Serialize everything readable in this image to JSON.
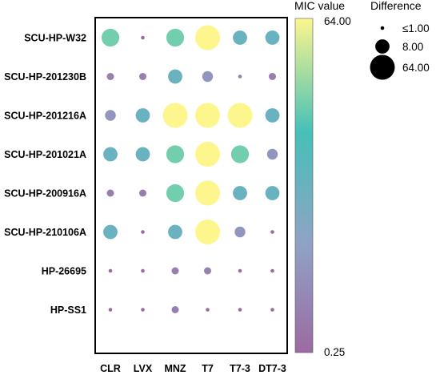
{
  "chart_data": {
    "type": "scatter",
    "subtype": "bubble-matrix",
    "columns": [
      "CLR",
      "LVX",
      "MNZ",
      "T7",
      "T7-3",
      "DT7-3"
    ],
    "rows": [
      "SCU-HP-W32",
      "SCU-HP-201230B",
      "SCU-HP-201216A",
      "SCU-HP-201021A",
      "SCU-HP-200916A",
      "SCU-HP-210106A",
      "HP-26695",
      "HP-SS1"
    ],
    "colorbar": {
      "title": "MIC value",
      "min_label": "0.25",
      "max_label": "64.00",
      "min": 0.25,
      "max": 64,
      "scale": "log",
      "colors": [
        "#9c6aa3",
        "#8fa3c6",
        "#45c0b8",
        "#fdf68d"
      ]
    },
    "size_legend": {
      "title": "Difference",
      "labels": [
        "≤1.00",
        "8.00",
        "64.00"
      ],
      "values": [
        1,
        8,
        64
      ]
    },
    "points": [
      {
        "row": "SCU-HP-W32",
        "col": "CLR",
        "mic": 16,
        "difference": 16
      },
      {
        "row": "SCU-HP-W32",
        "col": "LVX",
        "mic": 0.25,
        "difference": 1
      },
      {
        "row": "SCU-HP-W32",
        "col": "MNZ",
        "mic": 16,
        "difference": 16
      },
      {
        "row": "SCU-HP-W32",
        "col": "T7",
        "mic": 64,
        "difference": 64
      },
      {
        "row": "SCU-HP-W32",
        "col": "T7-3",
        "mic": 4,
        "difference": 8
      },
      {
        "row": "SCU-HP-W32",
        "col": "DT7-3",
        "mic": 4,
        "difference": 8
      },
      {
        "row": "SCU-HP-201230B",
        "col": "CLR",
        "mic": 0.5,
        "difference": 2
      },
      {
        "row": "SCU-HP-201230B",
        "col": "LVX",
        "mic": 0.5,
        "difference": 2
      },
      {
        "row": "SCU-HP-201230B",
        "col": "MNZ",
        "mic": 4,
        "difference": 8
      },
      {
        "row": "SCU-HP-201230B",
        "col": "T7",
        "mic": 1,
        "difference": 4
      },
      {
        "row": "SCU-HP-201230B",
        "col": "T7-3",
        "mic": 0.5,
        "difference": 1
      },
      {
        "row": "SCU-HP-201230B",
        "col": "DT7-3",
        "mic": 0.5,
        "difference": 2
      },
      {
        "row": "SCU-HP-201216A",
        "col": "CLR",
        "mic": 1,
        "difference": 4
      },
      {
        "row": "SCU-HP-201216A",
        "col": "LVX",
        "mic": 4,
        "difference": 8
      },
      {
        "row": "SCU-HP-201216A",
        "col": "MNZ",
        "mic": 64,
        "difference": 64
      },
      {
        "row": "SCU-HP-201216A",
        "col": "T7",
        "mic": 64,
        "difference": 64
      },
      {
        "row": "SCU-HP-201216A",
        "col": "T7-3",
        "mic": 64,
        "difference": 64
      },
      {
        "row": "SCU-HP-201216A",
        "col": "DT7-3",
        "mic": 4,
        "difference": 8
      },
      {
        "row": "SCU-HP-201021A",
        "col": "CLR",
        "mic": 4,
        "difference": 8
      },
      {
        "row": "SCU-HP-201021A",
        "col": "LVX",
        "mic": 4,
        "difference": 8
      },
      {
        "row": "SCU-HP-201021A",
        "col": "MNZ",
        "mic": 16,
        "difference": 16
      },
      {
        "row": "SCU-HP-201021A",
        "col": "T7",
        "mic": 64,
        "difference": 64
      },
      {
        "row": "SCU-HP-201021A",
        "col": "T7-3",
        "mic": 16,
        "difference": 16
      },
      {
        "row": "SCU-HP-201021A",
        "col": "DT7-3",
        "mic": 1,
        "difference": 4
      },
      {
        "row": "SCU-HP-200916A",
        "col": "CLR",
        "mic": 0.5,
        "difference": 2
      },
      {
        "row": "SCU-HP-200916A",
        "col": "LVX",
        "mic": 0.5,
        "difference": 2
      },
      {
        "row": "SCU-HP-200916A",
        "col": "MNZ",
        "mic": 16,
        "difference": 16
      },
      {
        "row": "SCU-HP-200916A",
        "col": "T7",
        "mic": 64,
        "difference": 64
      },
      {
        "row": "SCU-HP-200916A",
        "col": "T7-3",
        "mic": 4,
        "difference": 8
      },
      {
        "row": "SCU-HP-200916A",
        "col": "DT7-3",
        "mic": 4,
        "difference": 8
      },
      {
        "row": "SCU-HP-210106A",
        "col": "CLR",
        "mic": 4,
        "difference": 8
      },
      {
        "row": "SCU-HP-210106A",
        "col": "LVX",
        "mic": 0.25,
        "difference": 1
      },
      {
        "row": "SCU-HP-210106A",
        "col": "MNZ",
        "mic": 4,
        "difference": 8
      },
      {
        "row": "SCU-HP-210106A",
        "col": "T7",
        "mic": 64,
        "difference": 64
      },
      {
        "row": "SCU-HP-210106A",
        "col": "T7-3",
        "mic": 1,
        "difference": 4
      },
      {
        "row": "SCU-HP-210106A",
        "col": "DT7-3",
        "mic": 0.25,
        "difference": 1
      },
      {
        "row": "HP-26695",
        "col": "CLR",
        "mic": 0.25,
        "difference": 1
      },
      {
        "row": "HP-26695",
        "col": "LVX",
        "mic": 0.25,
        "difference": 1
      },
      {
        "row": "HP-26695",
        "col": "MNZ",
        "mic": 0.5,
        "difference": 2
      },
      {
        "row": "HP-26695",
        "col": "T7",
        "mic": 0.5,
        "difference": 2
      },
      {
        "row": "HP-26695",
        "col": "T7-3",
        "mic": 0.25,
        "difference": 1
      },
      {
        "row": "HP-26695",
        "col": "DT7-3",
        "mic": 0.25,
        "difference": 1
      },
      {
        "row": "HP-SS1",
        "col": "CLR",
        "mic": 0.25,
        "difference": 1
      },
      {
        "row": "HP-SS1",
        "col": "LVX",
        "mic": 0.25,
        "difference": 1
      },
      {
        "row": "HP-SS1",
        "col": "MNZ",
        "mic": 0.5,
        "difference": 2
      },
      {
        "row": "HP-SS1",
        "col": "T7",
        "mic": 0.25,
        "difference": 1
      },
      {
        "row": "HP-SS1",
        "col": "T7-3",
        "mic": 0.25,
        "difference": 1
      },
      {
        "row": "HP-SS1",
        "col": "DT7-3",
        "mic": 0.25,
        "difference": 1
      }
    ]
  }
}
